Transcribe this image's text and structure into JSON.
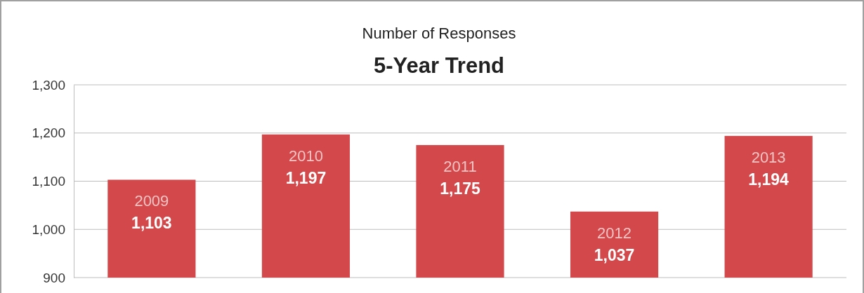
{
  "chart_data": {
    "type": "bar",
    "title": "Number of Responses",
    "subtitle": "5-Year Trend",
    "categories": [
      "2009",
      "2010",
      "2011",
      "2012",
      "2013"
    ],
    "values": [
      1103,
      1197,
      1175,
      1037,
      1194
    ],
    "color": "#d2484b",
    "ylim": [
      900,
      1300
    ],
    "yticks": [
      {
        "value": 900,
        "label": "900"
      },
      {
        "value": 1000,
        "label": "1,000"
      },
      {
        "value": 1100,
        "label": "1,100"
      },
      {
        "value": 1200,
        "label": "1,200"
      },
      {
        "value": 1300,
        "label": "1,300"
      }
    ],
    "value_labels": [
      "1,103",
      "1,197",
      "1,175",
      "1,037",
      "1,194"
    ],
    "grid": "y"
  }
}
